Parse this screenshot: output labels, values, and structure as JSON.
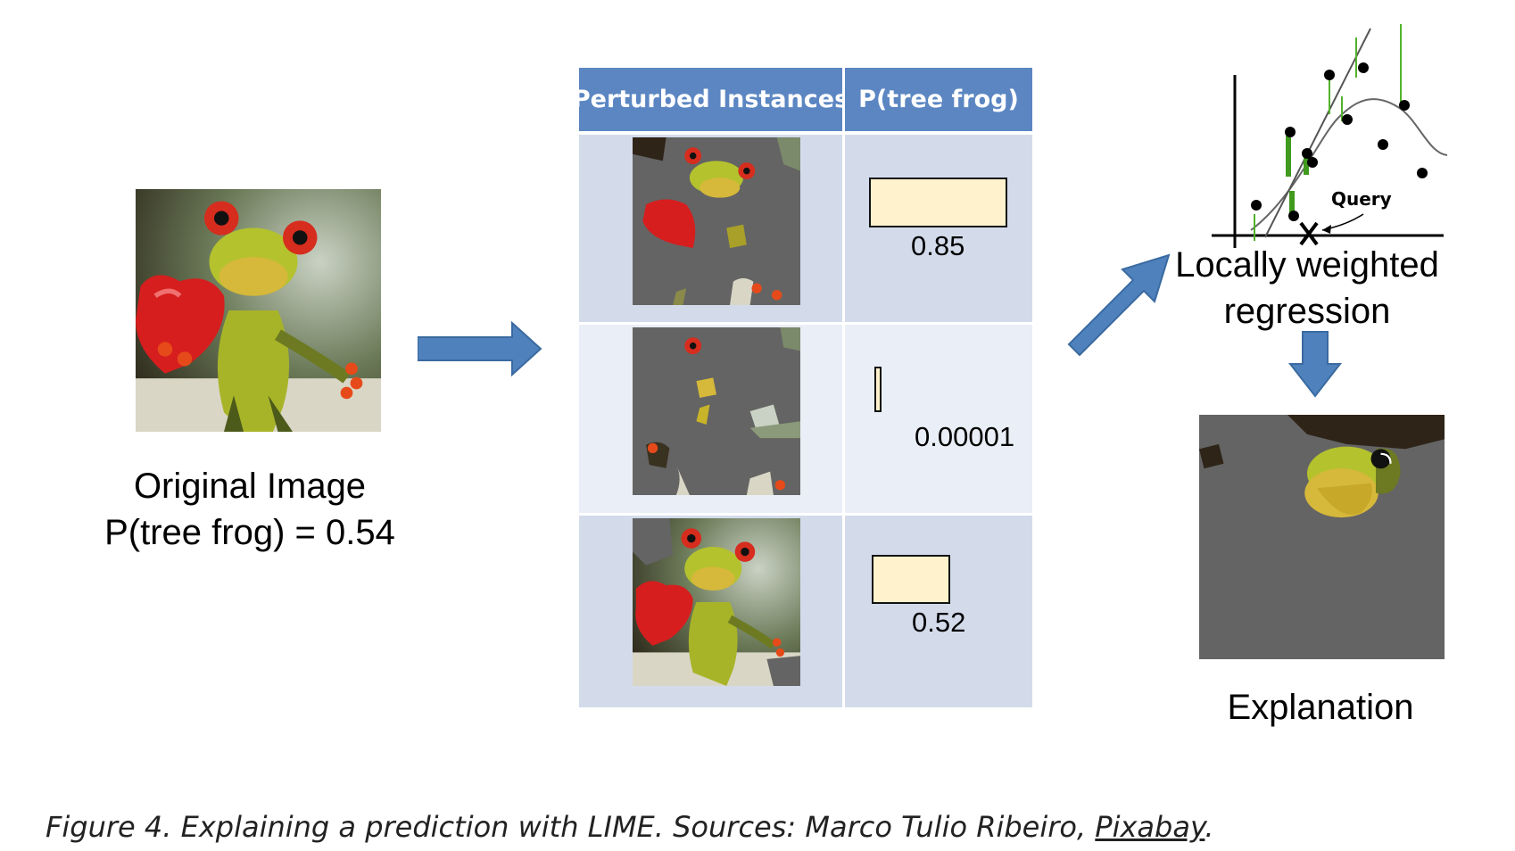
{
  "original": {
    "title": "Original Image",
    "probability_label": "P(tree frog)  = 0.54"
  },
  "table": {
    "headers": [
      "Perturbed Instances",
      "P(tree frog)"
    ],
    "rows": [
      {
        "probability": "0.85",
        "bar_fraction": 0.85
      },
      {
        "probability": "0.00001",
        "bar_fraction": 1e-05
      },
      {
        "probability": "0.52",
        "bar_fraction": 0.52
      }
    ]
  },
  "regression": {
    "title_line1": "Locally weighted",
    "title_line2": "regression",
    "query_label": "Query"
  },
  "explanation": {
    "title": "Explanation"
  },
  "caption": {
    "text": "Figure 4. Explaining a prediction with LIME. Sources: Marco Tulio Ribeiro, ",
    "link": "Pixabay",
    "end": "."
  },
  "colors": {
    "header_blue": "#5b86c2",
    "row_dark": "#d3dbeb",
    "row_light": "#eaeef6",
    "bar_fill": "#fff2cc",
    "arrow_blue": "#4f81bd",
    "masked_gray": "#646464"
  }
}
